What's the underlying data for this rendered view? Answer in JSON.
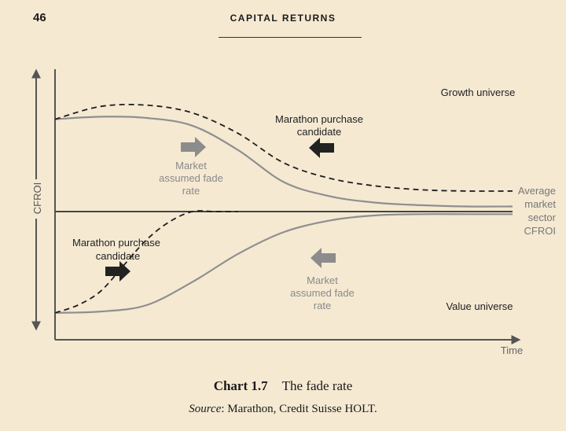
{
  "page": {
    "number": "46",
    "running_head": "CAPITAL RETURNS"
  },
  "figure": {
    "number": "Chart 1.7",
    "title": "The fade rate",
    "source_label": "Source",
    "source_text": ": Marathon, Credit Suisse HOLT."
  },
  "chart_data": {
    "type": "line",
    "ylabel": "CFROI",
    "xlabel": "Time",
    "regions": [
      "Growth universe",
      "Value universe"
    ],
    "baseline_label": [
      "Average",
      "market",
      "sector",
      "CFROI"
    ],
    "annotations": {
      "upper_fade": [
        "Market",
        "assumed fade",
        "rate"
      ],
      "upper_candidate": [
        "Marathon purchase",
        "candidate"
      ],
      "lower_fade": [
        "Market",
        "assumed fade",
        "rate"
      ],
      "lower_candidate": [
        "Marathon purchase",
        "candidate"
      ]
    },
    "series": [
      {
        "style": "solid",
        "region": "growth",
        "x": [
          0,
          10,
          20,
          30,
          40,
          50,
          60,
          70,
          80,
          90,
          100
        ],
        "y": [
          0.72,
          0.74,
          0.73,
          0.67,
          0.48,
          0.23,
          0.12,
          0.07,
          0.05,
          0.04,
          0.04
        ]
      },
      {
        "style": "dashed",
        "region": "growth",
        "x": [
          0,
          10,
          20,
          30,
          40,
          50,
          60,
          70,
          80,
          90,
          100
        ],
        "y": [
          0.72,
          0.82,
          0.83,
          0.77,
          0.61,
          0.38,
          0.26,
          0.2,
          0.17,
          0.16,
          0.16
        ]
      },
      {
        "style": "solid",
        "region": "value",
        "x": [
          0,
          10,
          20,
          30,
          40,
          50,
          60,
          70,
          80,
          90,
          100
        ],
        "y": [
          -0.79,
          -0.78,
          -0.73,
          -0.55,
          -0.33,
          -0.16,
          -0.07,
          -0.03,
          -0.02,
          -0.02,
          -0.02
        ]
      },
      {
        "style": "dashed",
        "region": "value",
        "x": [
          0,
          5,
          10,
          15,
          20,
          25,
          30,
          35,
          40
        ],
        "y": [
          -0.79,
          -0.73,
          -0.62,
          -0.42,
          -0.22,
          -0.08,
          0.0,
          0.0,
          0.0
        ]
      }
    ],
    "xlim": [
      0,
      100
    ],
    "ylim": [
      -1,
      1
    ],
    "colors": {
      "line": "#8f8f8f",
      "dashed": "#1e1e1e",
      "arrow_grey": "#8c8c8c",
      "arrow_black": "#222222",
      "axis": "#555555"
    }
  }
}
